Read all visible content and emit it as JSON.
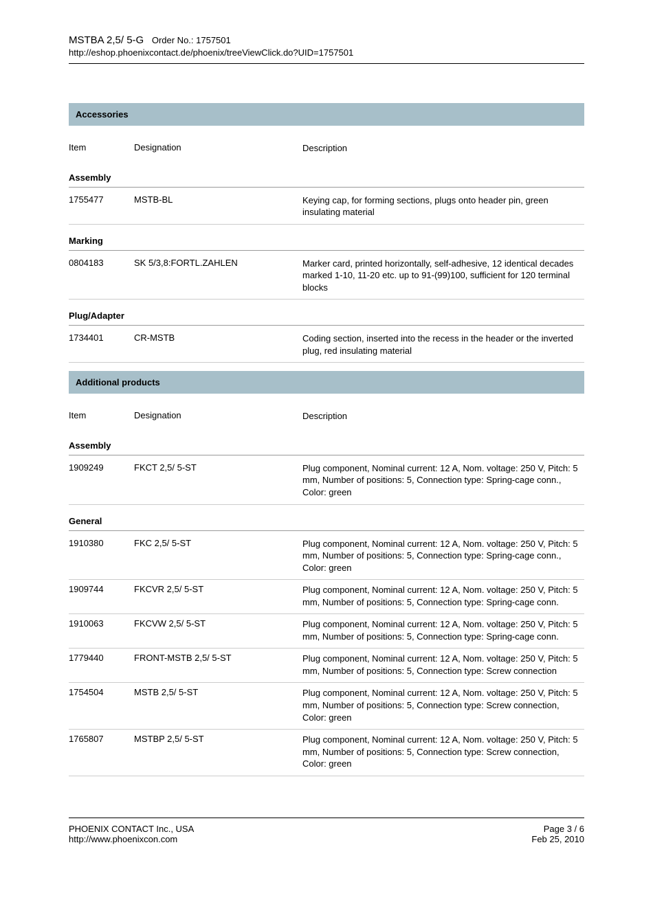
{
  "header": {
    "product_title": "MSTBA 2,5/ 5-G",
    "order_label": "Order No.: 1757501",
    "url": "http://eshop.phoenixcontact.de/phoenix/treeViewClick.do?UID=1757501"
  },
  "columns": {
    "item": "Item",
    "designation": "Designation",
    "description": "Description"
  },
  "sections": [
    {
      "title": "Accessories",
      "groups": [
        {
          "name": "Assembly",
          "rows": [
            {
              "item": "1755477",
              "designation": "MSTB-BL",
              "description": "Keying cap, for forming sections, plugs onto header pin, green insulating material"
            }
          ]
        },
        {
          "name": "Marking",
          "rows": [
            {
              "item": "0804183",
              "designation": "SK 5/3,8:FORTL.ZAHLEN",
              "description": "Marker card, printed horizontally, self-adhesive, 12 identical decades marked 1-10, 11-20 etc. up to 91-(99)100, sufficient for 120 terminal blocks"
            }
          ]
        },
        {
          "name": "Plug/Adapter",
          "rows": [
            {
              "item": "1734401",
              "designation": "CR-MSTB",
              "description": "Coding section, inserted into the recess in the header or the inverted plug, red insulating material"
            }
          ]
        }
      ]
    },
    {
      "title": "Additional products",
      "groups": [
        {
          "name": "Assembly",
          "rows": [
            {
              "item": "1909249",
              "designation": "FKCT 2,5/ 5-ST",
              "description": "Plug component, Nominal current: 12 A, Nom. voltage: 250 V, Pitch: 5 mm, Number of positions: 5, Connection type: Spring-cage conn., Color: green"
            }
          ]
        },
        {
          "name": "General",
          "rows": [
            {
              "item": "1910380",
              "designation": "FKC 2,5/ 5-ST",
              "description": "Plug component, Nominal current: 12 A, Nom. voltage: 250 V, Pitch: 5 mm, Number of positions: 5, Connection type: Spring-cage conn., Color: green"
            },
            {
              "item": "1909744",
              "designation": "FKCVR 2,5/ 5-ST",
              "description": "Plug component, Nominal current: 12 A, Nom. voltage: 250 V, Pitch: 5 mm, Number of positions: 5, Connection type: Spring-cage conn."
            },
            {
              "item": "1910063",
              "designation": "FKCVW 2,5/ 5-ST",
              "description": "Plug component, Nominal current: 12 A, Nom. voltage: 250 V, Pitch: 5 mm, Number of positions: 5, Connection type: Spring-cage conn."
            },
            {
              "item": "1779440",
              "designation": "FRONT-MSTB 2,5/ 5-ST",
              "description": "Plug component, Nominal current: 12 A, Nom. voltage: 250 V, Pitch: 5 mm, Number of positions: 5, Connection type: Screw connection"
            },
            {
              "item": "1754504",
              "designation": "MSTB 2,5/ 5-ST",
              "description": "Plug component, Nominal current: 12 A, Nom. voltage: 250 V, Pitch: 5 mm, Number of positions: 5, Connection type: Screw connection, Color: green"
            },
            {
              "item": "1765807",
              "designation": "MSTBP 2,5/ 5-ST",
              "description": "Plug component, Nominal current: 12 A, Nom. voltage: 250 V, Pitch: 5 mm, Number of positions: 5, Connection type: Screw connection, Color: green"
            }
          ]
        }
      ]
    }
  ],
  "footer": {
    "company": "PHOENIX CONTACT Inc., USA",
    "site": "http://www.phoenixcon.com",
    "page": "Page 3 / 6",
    "date": "Feb 25, 2010"
  },
  "colors": {
    "section_bar_bg": "#a7bfc9",
    "rule": "#000000",
    "row_border": "#cccccc"
  }
}
